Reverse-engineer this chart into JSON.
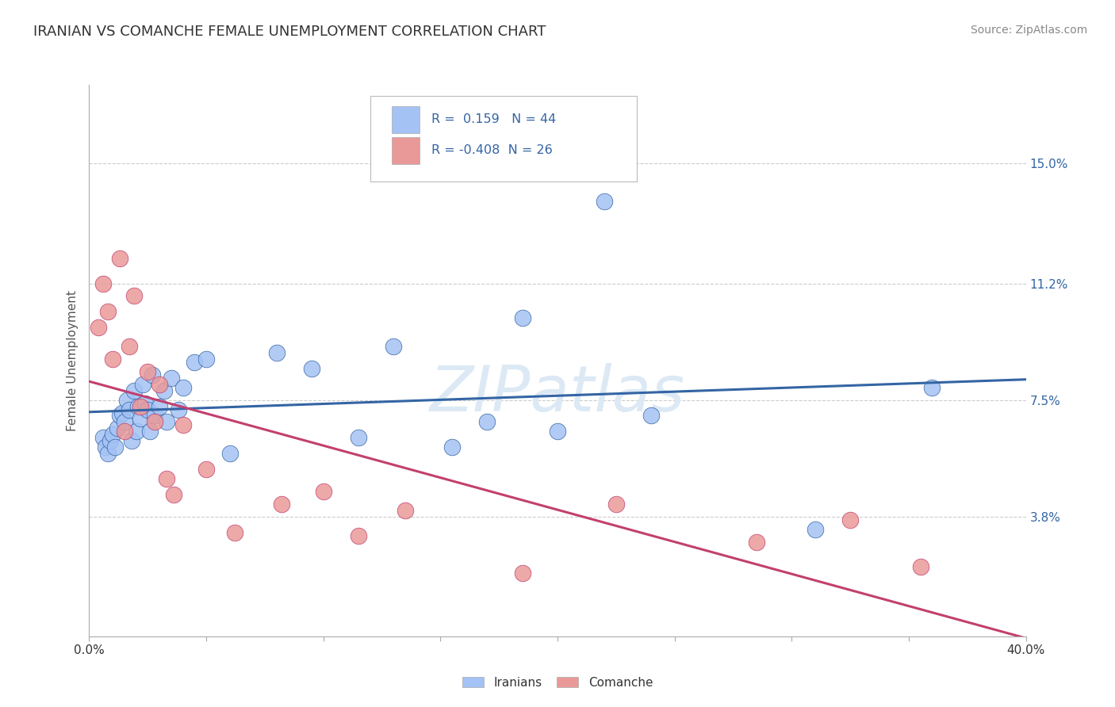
{
  "title": "IRANIAN VS COMANCHE FEMALE UNEMPLOYMENT CORRELATION CHART",
  "source_text": "Source: ZipAtlas.com",
  "ylabel": "Female Unemployment",
  "xlim": [
    0.0,
    0.4
  ],
  "ylim": [
    0.0,
    0.175
  ],
  "xtick_positions": [
    0.0,
    0.05,
    0.1,
    0.15,
    0.2,
    0.25,
    0.3,
    0.35,
    0.4
  ],
  "xticklabels": [
    "0.0%",
    "",
    "",
    "",
    "",
    "",
    "",
    "",
    "40.0%"
  ],
  "ytick_positions": [
    0.038,
    0.075,
    0.112,
    0.15
  ],
  "ytick_labels": [
    "3.8%",
    "7.5%",
    "11.2%",
    "15.0%"
  ],
  "iranian_R": "0.159",
  "iranian_N": "44",
  "comanche_R": "-0.408",
  "comanche_N": "26",
  "iranian_color": "#a4c2f4",
  "comanche_color": "#ea9999",
  "iranian_line_color": "#3465a4",
  "comanche_line_color": "#c2406e",
  "watermark": "ZIPatlas",
  "watermark_color": "#dce9f5",
  "background_color": "#ffffff",
  "grid_color": "#cccccc",
  "title_color": "#333333",
  "axis_label_color": "#3465a4",
  "legend_text_color": "#3465a4",
  "iranians_x": [
    0.006,
    0.007,
    0.008,
    0.009,
    0.01,
    0.011,
    0.012,
    0.013,
    0.014,
    0.015,
    0.016,
    0.017,
    0.018,
    0.019,
    0.02,
    0.021,
    0.022,
    0.023,
    0.024,
    0.025,
    0.026,
    0.027,
    0.028,
    0.03,
    0.032,
    0.033,
    0.035,
    0.038,
    0.04,
    0.045,
    0.05,
    0.06,
    0.08,
    0.095,
    0.115,
    0.13,
    0.155,
    0.17,
    0.185,
    0.2,
    0.22,
    0.24,
    0.31,
    0.36
  ],
  "iranians_y": [
    0.063,
    0.06,
    0.058,
    0.062,
    0.064,
    0.06,
    0.066,
    0.07,
    0.071,
    0.068,
    0.075,
    0.072,
    0.062,
    0.078,
    0.065,
    0.073,
    0.069,
    0.08,
    0.074,
    0.072,
    0.065,
    0.083,
    0.07,
    0.073,
    0.078,
    0.068,
    0.082,
    0.072,
    0.079,
    0.087,
    0.088,
    0.058,
    0.09,
    0.085,
    0.063,
    0.092,
    0.06,
    0.068,
    0.101,
    0.065,
    0.138,
    0.07,
    0.034,
    0.079
  ],
  "comanche_x": [
    0.004,
    0.006,
    0.008,
    0.01,
    0.013,
    0.015,
    0.017,
    0.019,
    0.022,
    0.025,
    0.028,
    0.03,
    0.033,
    0.036,
    0.04,
    0.05,
    0.062,
    0.082,
    0.1,
    0.115,
    0.135,
    0.185,
    0.225,
    0.285,
    0.325,
    0.355
  ],
  "comanche_y": [
    0.098,
    0.112,
    0.103,
    0.088,
    0.12,
    0.065,
    0.092,
    0.108,
    0.073,
    0.084,
    0.068,
    0.08,
    0.05,
    0.045,
    0.067,
    0.053,
    0.033,
    0.042,
    0.046,
    0.032,
    0.04,
    0.02,
    0.042,
    0.03,
    0.037,
    0.022
  ]
}
